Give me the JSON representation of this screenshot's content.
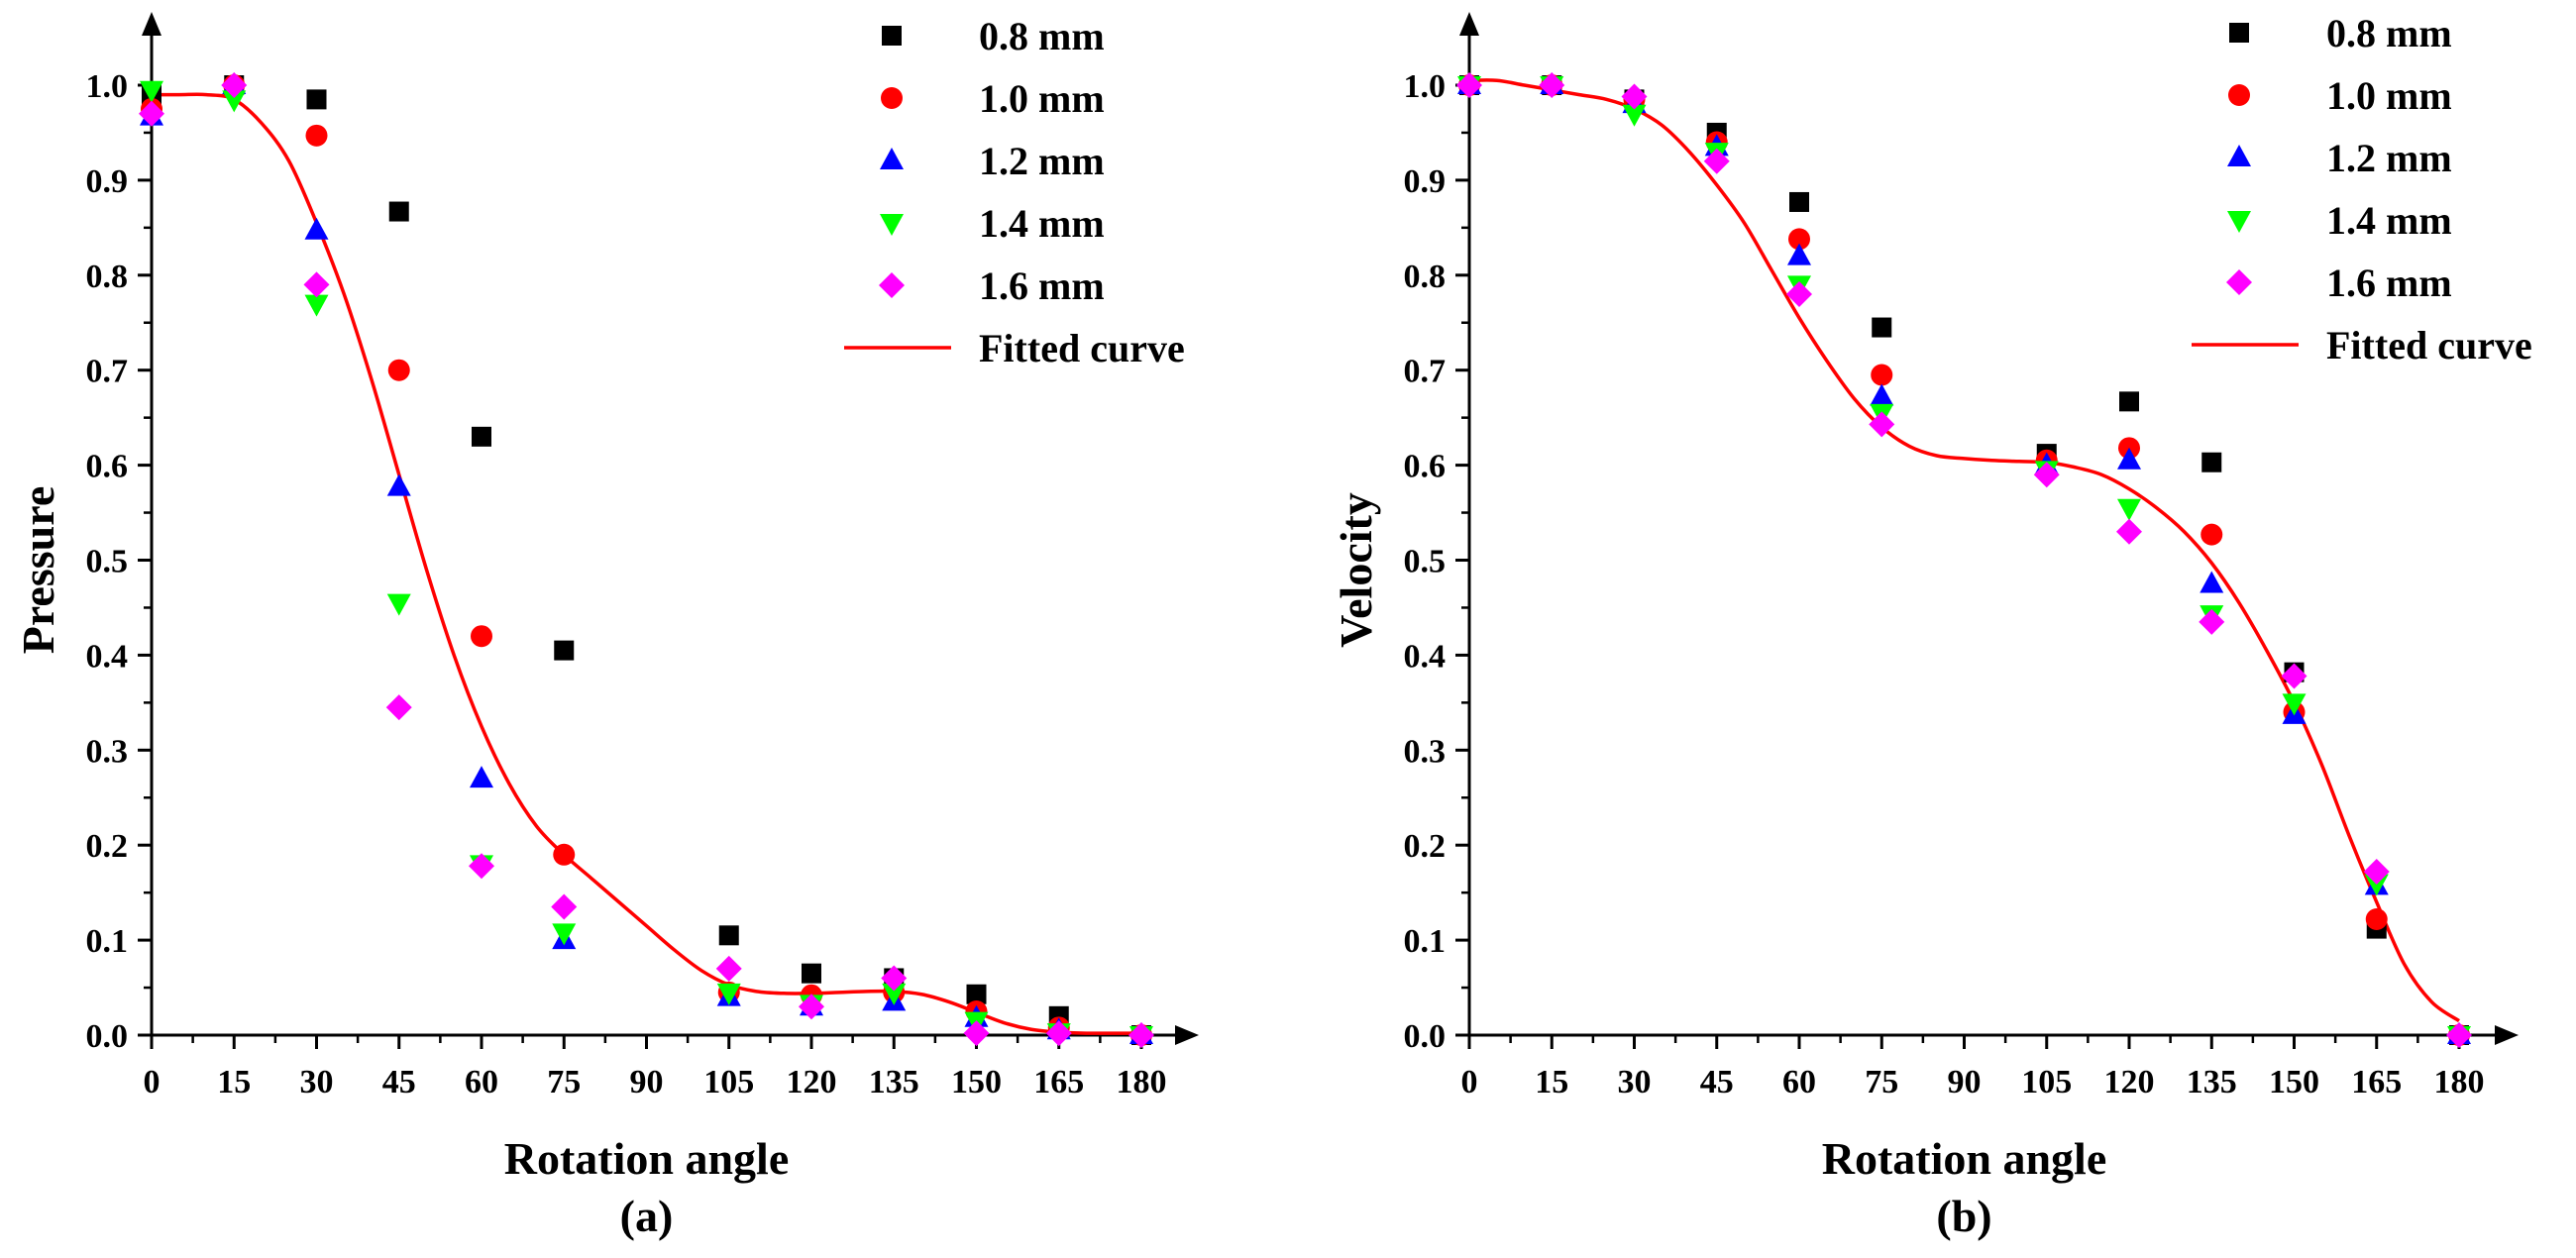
{
  "figure": {
    "panel_labels": [
      "(a)",
      "(b)"
    ]
  },
  "chart_data": [
    {
      "type": "scatter",
      "panel": "(a)",
      "xlabel": "Rotation angle",
      "ylabel": "Pressure",
      "xlim": [
        0,
        180
      ],
      "ylim": [
        0,
        1.0
      ],
      "xticks": [
        0,
        15,
        30,
        45,
        60,
        75,
        90,
        105,
        120,
        135,
        150,
        165,
        180
      ],
      "yticks": [
        0.0,
        0.1,
        0.2,
        0.3,
        0.4,
        0.5,
        0.6,
        0.7,
        0.8,
        0.9,
        1.0
      ],
      "ytick_labels": [
        "0.0",
        "0.1",
        "0.2",
        "0.3",
        "0.4",
        "0.5",
        "0.6",
        "0.7",
        "0.8",
        "0.9",
        "1.0"
      ],
      "grid": false,
      "legend_position": "top-right",
      "x": [
        0,
        15,
        30,
        45,
        60,
        75,
        105,
        120,
        135,
        150,
        165,
        180
      ],
      "series": [
        {
          "name": "0.8 mm",
          "marker": "square",
          "color": "#000000",
          "values": [
            0.99,
            1.0,
            0.985,
            0.867,
            0.63,
            0.405,
            0.105,
            0.065,
            0.06,
            0.043,
            0.02,
            0.0
          ]
        },
        {
          "name": "1.0 mm",
          "marker": "circle",
          "color": "#ff0000",
          "values": [
            0.975,
            1.0,
            0.947,
            0.7,
            0.42,
            0.19,
            0.045,
            0.042,
            0.045,
            0.025,
            0.008,
            0.0
          ]
        },
        {
          "name": "1.2 mm",
          "marker": "triangle-up",
          "color": "#0000ff",
          "values": [
            0.967,
            1.0,
            0.847,
            0.577,
            0.27,
            0.1,
            0.04,
            0.03,
            0.035,
            0.018,
            0.005,
            0.0
          ]
        },
        {
          "name": "1.4 mm",
          "marker": "triangle-down",
          "color": "#00ff00",
          "values": [
            0.995,
            0.985,
            0.77,
            0.455,
            0.18,
            0.108,
            0.045,
            0.033,
            0.045,
            0.015,
            0.003,
            0.0
          ]
        },
        {
          "name": "1.6 mm",
          "marker": "diamond",
          "color": "#ff00ff",
          "values": [
            0.97,
            1.0,
            0.79,
            0.345,
            0.178,
            0.135,
            0.07,
            0.03,
            0.06,
            0.002,
            0.002,
            0.0
          ]
        }
      ],
      "fitted_curve": {
        "name": "Fitted curve",
        "color": "#ff0000",
        "x": [
          0,
          5,
          10,
          15,
          20,
          25,
          30,
          35,
          40,
          45,
          50,
          55,
          60,
          65,
          70,
          75,
          80,
          85,
          90,
          95,
          100,
          105,
          110,
          115,
          120,
          125,
          130,
          135,
          140,
          145,
          150,
          155,
          160,
          165,
          170,
          175,
          180
        ],
        "y": [
          0.99,
          0.99,
          0.99,
          0.985,
          0.96,
          0.92,
          0.855,
          0.78,
          0.69,
          0.59,
          0.49,
          0.4,
          0.325,
          0.265,
          0.22,
          0.19,
          0.165,
          0.14,
          0.115,
          0.09,
          0.068,
          0.053,
          0.046,
          0.044,
          0.044,
          0.045,
          0.046,
          0.046,
          0.043,
          0.035,
          0.024,
          0.013,
          0.006,
          0.003,
          0.002,
          0.002,
          0.002
        ]
      }
    },
    {
      "type": "scatter",
      "panel": "(b)",
      "xlabel": "Rotation angle",
      "ylabel": "Velocity",
      "xlim": [
        0,
        180
      ],
      "ylim": [
        0,
        1.0
      ],
      "xticks": [
        0,
        15,
        30,
        45,
        60,
        75,
        90,
        105,
        120,
        135,
        150,
        165,
        180
      ],
      "yticks": [
        0.0,
        0.1,
        0.2,
        0.3,
        0.4,
        0.5,
        0.6,
        0.7,
        0.8,
        0.9,
        1.0
      ],
      "ytick_labels": [
        "0.0",
        "0.1",
        "0.2",
        "0.3",
        "0.4",
        "0.5",
        "0.6",
        "0.7",
        "0.8",
        "0.9",
        "1.0"
      ],
      "grid": false,
      "legend_position": "top-right",
      "x": [
        0,
        15,
        30,
        45,
        60,
        75,
        105,
        120,
        135,
        150,
        165,
        180
      ],
      "series": [
        {
          "name": "0.8 mm",
          "marker": "square",
          "color": "#000000",
          "values": [
            1.0,
            1.0,
            0.985,
            0.95,
            0.877,
            0.745,
            0.612,
            0.667,
            0.603,
            0.382,
            0.112,
            0.0
          ]
        },
        {
          "name": "1.0 mm",
          "marker": "circle",
          "color": "#ff0000",
          "values": [
            1.0,
            1.0,
            0.985,
            0.94,
            0.838,
            0.695,
            0.605,
            0.618,
            0.527,
            0.34,
            0.122,
            0.0
          ]
        },
        {
          "name": "1.2 mm",
          "marker": "triangle-up",
          "color": "#0000ff",
          "values": [
            1.0,
            1.0,
            0.98,
            0.935,
            0.82,
            0.672,
            0.6,
            0.605,
            0.475,
            0.337,
            0.157,
            0.0
          ]
        },
        {
          "name": "1.4 mm",
          "marker": "triangle-down",
          "color": "#00ff00",
          "values": [
            1.0,
            1.0,
            0.97,
            0.93,
            0.79,
            0.655,
            0.595,
            0.555,
            0.443,
            0.35,
            0.16,
            0.0
          ]
        },
        {
          "name": "1.6 mm",
          "marker": "diamond",
          "color": "#ff00ff",
          "values": [
            1.0,
            1.0,
            0.988,
            0.92,
            0.78,
            0.643,
            0.59,
            0.53,
            0.435,
            0.378,
            0.172,
            0.0
          ]
        }
      ],
      "fitted_curve": {
        "name": "Fitted curve",
        "color": "#ff0000",
        "x": [
          0,
          5,
          10,
          15,
          20,
          25,
          30,
          35,
          40,
          45,
          50,
          55,
          60,
          65,
          70,
          75,
          80,
          85,
          90,
          95,
          100,
          105,
          110,
          115,
          120,
          125,
          130,
          135,
          140,
          145,
          150,
          155,
          160,
          165,
          170,
          175,
          180
        ],
        "y": [
          1.005,
          1.005,
          1.0,
          0.995,
          0.99,
          0.985,
          0.975,
          0.958,
          0.93,
          0.895,
          0.855,
          0.805,
          0.755,
          0.71,
          0.67,
          0.64,
          0.62,
          0.61,
          0.607,
          0.605,
          0.604,
          0.603,
          0.598,
          0.59,
          0.575,
          0.555,
          0.53,
          0.497,
          0.455,
          0.405,
          0.35,
          0.285,
          0.21,
          0.14,
          0.075,
          0.035,
          0.015
        ]
      }
    }
  ]
}
